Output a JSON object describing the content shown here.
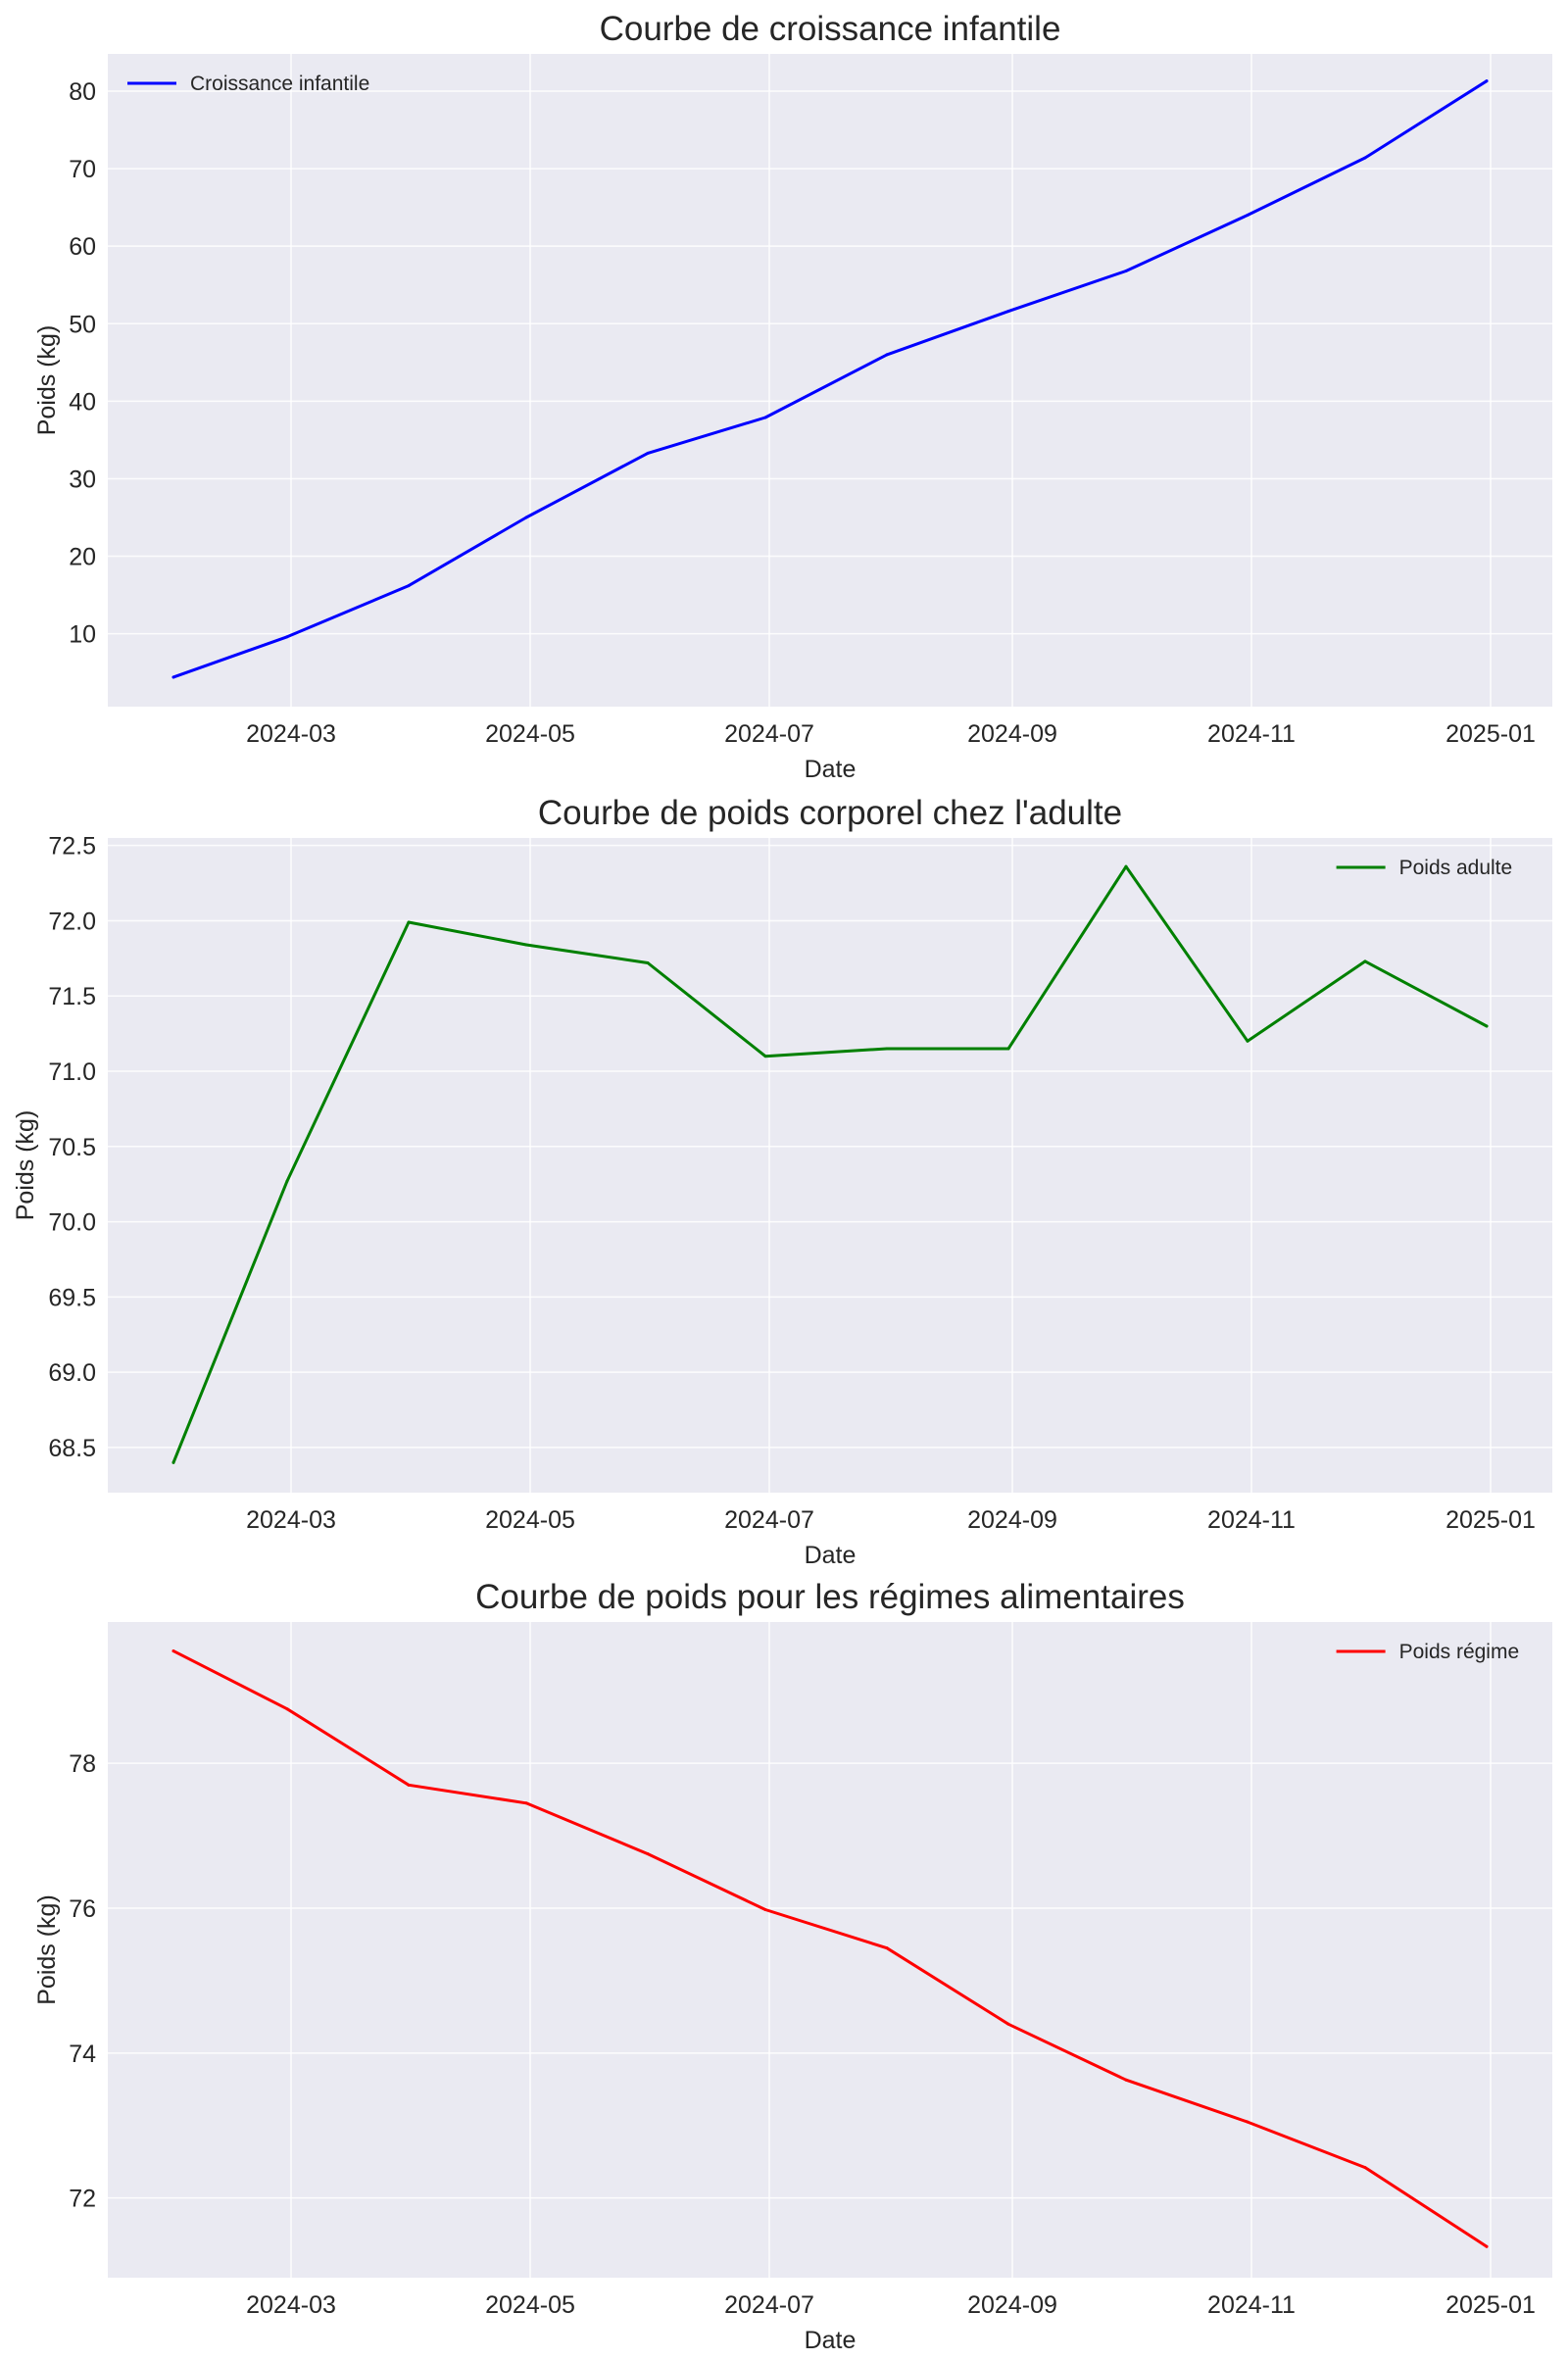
{
  "chart_data": [
    {
      "type": "line",
      "title": "Courbe de croissance infantile",
      "xlabel": "Date",
      "ylabel": "Poids (kg)",
      "x": [
        "2024-01-31",
        "2024-02-29",
        "2024-03-31",
        "2024-04-30",
        "2024-05-31",
        "2024-06-30",
        "2024-07-31",
        "2024-08-31",
        "2024-09-30",
        "2024-10-31",
        "2024-11-30",
        "2024-12-31"
      ],
      "x_ticks": [
        "2024-03",
        "2024-05",
        "2024-07",
        "2024-09",
        "2024-11",
        "2025-01"
      ],
      "y_ticks": [
        10,
        20,
        30,
        40,
        50,
        60,
        70,
        80
      ],
      "ylim": [
        0.6,
        84.8
      ],
      "grid": true,
      "legend_position": "top-left",
      "series": [
        {
          "name": "Croissance infantile",
          "color": "#0000ff",
          "values": [
            4.4,
            9.6,
            16.2,
            25.0,
            33.3,
            37.9,
            46.0,
            51.6,
            56.8,
            64.0,
            71.4,
            81.3
          ]
        }
      ]
    },
    {
      "type": "line",
      "title": "Courbe de poids corporel chez l'adulte",
      "xlabel": "Date",
      "ylabel": "Poids (kg)",
      "x": [
        "2024-01-31",
        "2024-02-29",
        "2024-03-31",
        "2024-04-30",
        "2024-05-31",
        "2024-06-30",
        "2024-07-31",
        "2024-08-31",
        "2024-09-30",
        "2024-10-31",
        "2024-11-30",
        "2024-12-31"
      ],
      "x_ticks": [
        "2024-03",
        "2024-05",
        "2024-07",
        "2024-09",
        "2024-11",
        "2025-01"
      ],
      "y_ticks": [
        68.5,
        69.0,
        69.5,
        70.0,
        70.5,
        71.0,
        71.5,
        72.0,
        72.5
      ],
      "ylim": [
        68.2,
        72.55
      ],
      "grid": true,
      "legend_position": "top-right",
      "series": [
        {
          "name": "Poids adulte",
          "color": "#008000",
          "values": [
            68.4,
            70.27,
            71.99,
            71.84,
            71.72,
            71.1,
            71.15,
            71.15,
            72.36,
            71.2,
            71.73,
            71.3
          ]
        }
      ]
    },
    {
      "type": "line",
      "title": "Courbe de poids pour les régimes alimentaires",
      "xlabel": "Date",
      "ylabel": "Poids (kg)",
      "x": [
        "2024-01-31",
        "2024-02-29",
        "2024-03-31",
        "2024-04-30",
        "2024-05-31",
        "2024-06-30",
        "2024-07-31",
        "2024-08-31",
        "2024-09-30",
        "2024-10-31",
        "2024-11-30",
        "2024-12-31"
      ],
      "x_ticks": [
        "2024-03",
        "2024-05",
        "2024-07",
        "2024-09",
        "2024-11",
        "2025-01"
      ],
      "y_ticks": [
        72,
        74,
        76,
        78
      ],
      "ylim": [
        70.9,
        79.95
      ],
      "grid": true,
      "legend_position": "top-right",
      "series": [
        {
          "name": "Poids régime",
          "color": "#ff0000",
          "values": [
            79.55,
            78.75,
            77.7,
            77.45,
            76.75,
            75.98,
            75.45,
            74.4,
            73.63,
            73.05,
            72.42,
            71.33
          ]
        }
      ]
    }
  ]
}
